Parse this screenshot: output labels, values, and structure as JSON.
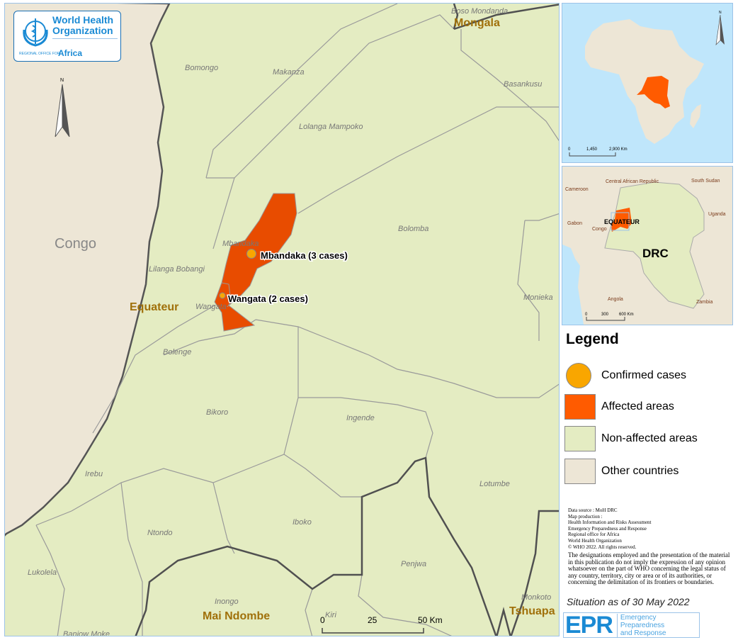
{
  "colors": {
    "affected": "#e84c00",
    "confirmed": "#f9a600",
    "non_affected": "#e4ecc2",
    "other_countries": "#ede6d6",
    "water": "#bfe6fb",
    "province_label": "#a0700a",
    "who_blue": "#1a8ad4"
  },
  "logo": {
    "line1": "World Health",
    "line2": "Organization",
    "regional": "REGIONAL OFFICE FOR",
    "region": "Africa"
  },
  "main_map": {
    "north": "N",
    "countries": [
      {
        "label": "Congo"
      }
    ],
    "provinces": [
      "Equateur",
      "Mongala",
      "Mai Ndombe",
      "Tshuapa"
    ],
    "districts": [
      "Bomongo",
      "Makanza",
      "Basankusu",
      "Boso Mondanda",
      "Lolanga Mampoko",
      "Bolomba",
      "Mbandaka",
      "Lilanga Bobangi",
      "Wangata",
      "Monieka",
      "Bolenge",
      "Bikoro",
      "Ingende",
      "Irebu",
      "Lotumbe",
      "Ntondo",
      "Iboko",
      "Lukolela",
      "Penjwa",
      "Inongo",
      "Kiri",
      "Monkoto",
      "Banjow Moke"
    ],
    "cases": [
      {
        "label": "Mbandaka (3 cases)",
        "count": 3
      },
      {
        "label": "Wangata (2 cases)",
        "count": 2
      }
    ],
    "scale": {
      "ticks": [
        "0",
        "25",
        "50 Km"
      ]
    }
  },
  "inset_africa": {
    "north": "N",
    "scale": {
      "ticks": [
        "0",
        "1,450",
        "2,900 Km"
      ]
    }
  },
  "inset_drc": {
    "labels": [
      "Central African Republic",
      "South Sudan",
      "Cameroon",
      "Gabon",
      "Congo",
      "Uganda",
      "Angola",
      "Zambia"
    ],
    "province": "EQUATEUR",
    "country": "DRC",
    "scale": {
      "ticks": [
        "0",
        "300",
        "600 Km"
      ]
    }
  },
  "legend": {
    "title": "Legend",
    "items": [
      "Confirmed cases",
      "Affected areas",
      "Non-affected areas",
      "Other countries"
    ]
  },
  "credits": [
    "Data source : MoH DRC",
    "Map production :",
    "Health Information and Risks Assessment",
    "Emergency Preparedness and Response",
    "Regional office for Africa",
    "World Health Organization",
    "© WHO 2022. All rights reserved."
  ],
  "disclaimer": "The designations employed and the presentation of the material in this publication do not imply the expression of any opinion whatsoever on the part of WHO concerning the legal status of any country, territory, city or area or of its authorities, or concerning the delimitation of its frontiers or boundaries.",
  "situation": "Situation as of 30 May 2022",
  "epr": {
    "abbr": "EPR",
    "line1": "Emergency Preparedness",
    "line2": "and Response"
  }
}
